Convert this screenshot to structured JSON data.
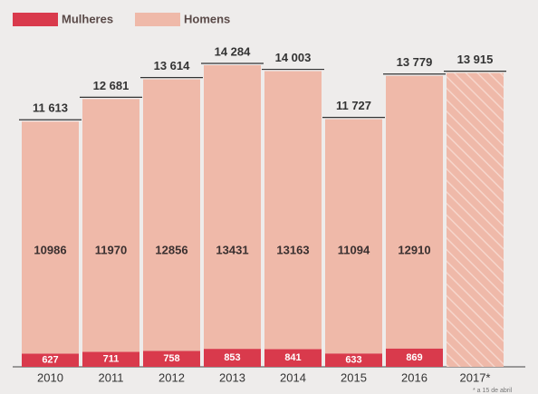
{
  "chart_data": {
    "type": "bar",
    "categories": [
      "2010",
      "2011",
      "2012",
      "2013",
      "2014",
      "2015",
      "2016",
      "2017*"
    ],
    "series": [
      {
        "name": "Mulheres",
        "color": "#d93a4c",
        "values": [
          627,
          711,
          758,
          853,
          841,
          633,
          869,
          null
        ]
      },
      {
        "name": "Homens",
        "color": "#efb9a9",
        "values": [
          10986,
          11970,
          12856,
          13431,
          13163,
          11094,
          12910,
          null
        ]
      }
    ],
    "totals": {
      "values": [
        11613,
        12681,
        13614,
        14284,
        14003,
        11727,
        13779,
        13915
      ],
      "value_labels": [
        "11 613",
        "12 681",
        "13 614",
        "14 284",
        "14 003",
        "11 727",
        "13 779",
        "13 915"
      ]
    },
    "note": "* a 15 de abril"
  }
}
